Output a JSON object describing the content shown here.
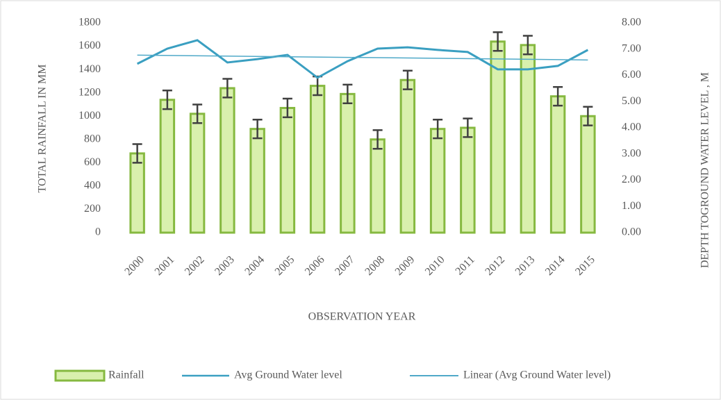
{
  "chart_data": {
    "type": "bar",
    "xlabel": "OBSERVATION YEAR",
    "ylabel": "TOTAL  RAINFALL  IN MM",
    "y2label": "DEPTH TOGROUND WATER LEVEL , M",
    "categories": [
      "2000",
      "2001",
      "2002",
      "2003",
      "2004",
      "2005",
      "2006",
      "2007",
      "2008",
      "2009",
      "2010",
      "2011",
      "2012",
      "2013",
      "2014",
      "2015"
    ],
    "series": [
      {
        "name": "Rainfall",
        "type": "bar",
        "color": "#d9f0ad",
        "edge": "#86b940",
        "values": [
          680,
          1140,
          1020,
          1240,
          890,
          1070,
          1260,
          1190,
          800,
          1310,
          890,
          900,
          1640,
          1610,
          1170,
          1000
        ],
        "errors": [
          80,
          80,
          80,
          80,
          80,
          80,
          80,
          80,
          80,
          80,
          80,
          80,
          80,
          80,
          80,
          80
        ]
      },
      {
        "name": "Avg Ground Water level",
        "type": "line",
        "axis": "y2",
        "color": "#3a9fc1",
        "values": [
          6.44,
          7.02,
          7.34,
          6.49,
          6.62,
          6.78,
          5.91,
          6.54,
          7.02,
          7.07,
          6.97,
          6.89,
          6.23,
          6.23,
          6.36,
          6.97
        ]
      }
    ],
    "trendline": {
      "name": "Linear (Avg Ground Water level)",
      "of": 1,
      "color": "#4fa9c8"
    },
    "ylim": [
      0,
      1800
    ],
    "yticks": [
      0,
      200,
      400,
      600,
      800,
      1000,
      1200,
      1400,
      1600,
      1800
    ],
    "y2lim": [
      0,
      8
    ],
    "y2ticks": [
      {
        "value": 0,
        "label": "0.00"
      },
      {
        "value": 1,
        "label": "1.00"
      },
      {
        "value": 2,
        "label": "2.00"
      },
      {
        "value": 3,
        "label": "3.00"
      },
      {
        "value": 4,
        "label": "4.00"
      },
      {
        "value": 5,
        "label": "5.00"
      },
      {
        "value": 6,
        "label": "6.00"
      },
      {
        "value": 7,
        "label": "7.00"
      },
      {
        "value": 8,
        "label": "8.00"
      }
    ],
    "grid": false,
    "legend": "bottom"
  }
}
